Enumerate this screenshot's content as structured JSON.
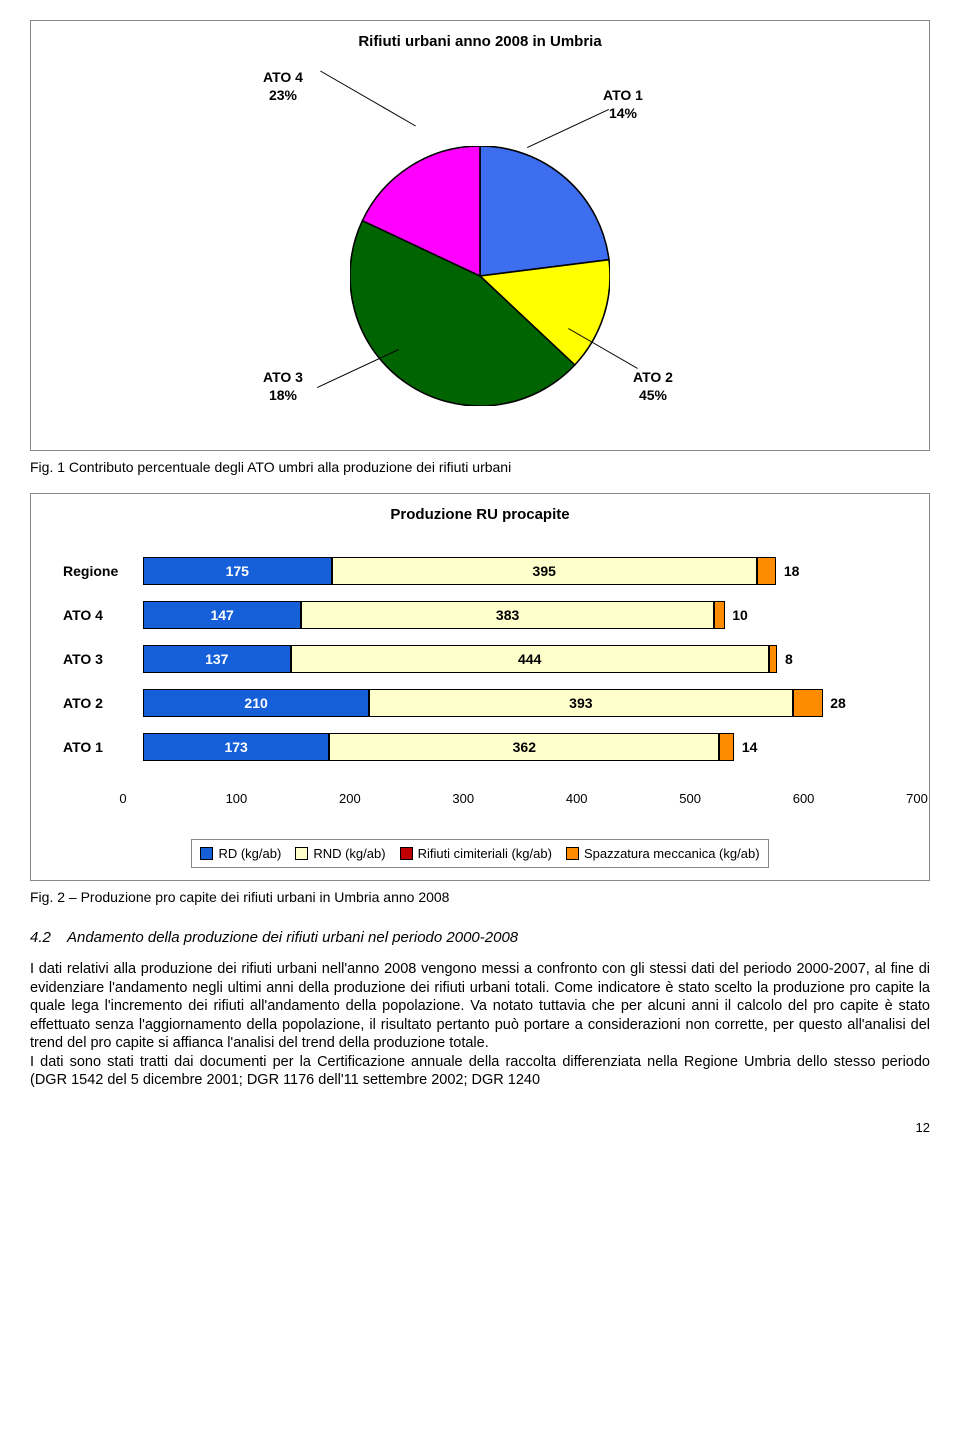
{
  "pie_chart": {
    "title": "Rifiuti urbani anno 2008 in Umbria",
    "slices": [
      {
        "label_line1": "ATO 4",
        "label_line2": "23%",
        "value": 23,
        "color": "#3e6ef0"
      },
      {
        "label_line1": "ATO 1",
        "label_line2": "14%",
        "value": 14,
        "color": "#ffff00"
      },
      {
        "label_line1": "ATO 2",
        "label_line2": "45%",
        "value": 45,
        "color": "#006400"
      },
      {
        "label_line1": "ATO 3",
        "label_line2": "18%",
        "value": 18,
        "color": "#ff00ff"
      }
    ],
    "stroke": "#000000"
  },
  "caption1": "Fig. 1 Contributo percentuale degli ATO umbri alla produzione dei rifiuti urbani",
  "bar_chart": {
    "title": "Produzione RU procapite",
    "x_max": 700,
    "x_ticks": [
      0,
      100,
      200,
      300,
      400,
      500,
      600,
      700
    ],
    "series_colors": {
      "rd": "#1560d8",
      "rnd": "#ffffcc",
      "cimit": "#c00000",
      "spaz": "#ff8c00"
    },
    "rows": [
      {
        "label": "Regione",
        "rd": 175,
        "rnd": 395,
        "cimit": 0,
        "spaz": 18
      },
      {
        "label": "ATO 4",
        "rd": 147,
        "rnd": 383,
        "cimit": 0,
        "spaz": 10
      },
      {
        "label": "ATO 3",
        "rd": 137,
        "rnd": 444,
        "cimit": 0,
        "spaz": 8
      },
      {
        "label": "ATO 2",
        "rd": 210,
        "rnd": 393,
        "cimit": 0,
        "spaz": 28
      },
      {
        "label": "ATO 1",
        "rd": 173,
        "rnd": 362,
        "cimit": 0,
        "spaz": 14
      }
    ],
    "legend": [
      {
        "label": "RD (kg/ab)",
        "color_key": "rd"
      },
      {
        "label": "RND (kg/ab)",
        "color_key": "rnd"
      },
      {
        "label": "Rifiuti cimiteriali (kg/ab)",
        "color_key": "cimit"
      },
      {
        "label": "Spazzatura meccanica (kg/ab)",
        "color_key": "spaz"
      }
    ]
  },
  "caption2": "Fig. 2 – Produzione pro capite dei rifiuti urbani in Umbria anno 2008",
  "section": {
    "number": "4.2",
    "title": "Andamento della produzione dei rifiuti urbani nel periodo 2000-2008"
  },
  "body": "I dati relativi alla produzione dei rifiuti urbani nell'anno 2008 vengono messi a confronto con gli stessi dati del periodo 2000-2007, al fine di evidenziare l'andamento negli ultimi anni della produzione dei rifiuti urbani totali. Come indicatore è stato scelto la produzione pro capite la quale lega l'incremento dei rifiuti all'andamento della popolazione. Va notato tuttavia che per alcuni anni il calcolo del pro capite è stato effettuato senza l'aggiornamento della popolazione, il risultato pertanto può portare a considerazioni non corrette, per questo all'analisi del trend del pro capite si affianca l'analisi del trend della produzione totale.\nI dati sono stati tratti dai documenti per la Certificazione annuale della raccolta differenziata nella Regione Umbria dello stesso periodo (DGR 1542 del 5 dicembre 2001; DGR 1176 dell'11 settembre 2002; DGR 1240",
  "page_number": "12"
}
